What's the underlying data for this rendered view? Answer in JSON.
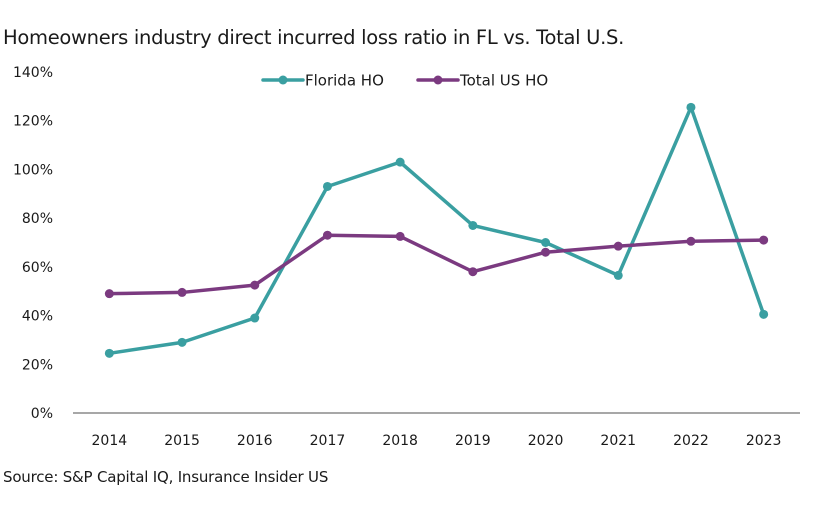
{
  "chart_data": {
    "type": "line",
    "title": "Homeowners industry direct incurred loss ratio in FL vs. Total U.S.",
    "xlabel": "",
    "ylabel": "",
    "categories": [
      "2014",
      "2015",
      "2016",
      "2017",
      "2018",
      "2019",
      "2020",
      "2021",
      "2022",
      "2023"
    ],
    "ylim": [
      0,
      140
    ],
    "yticks": [
      0,
      20,
      40,
      60,
      80,
      100,
      120,
      140
    ],
    "ytick_labels": [
      "0%",
      "20%",
      "40%",
      "60%",
      "80%",
      "100%",
      "120%",
      "140%"
    ],
    "grid": false,
    "legend_position": "top-center",
    "series": [
      {
        "name": "Florida HO",
        "color": "#3a9fa1",
        "values": [
          24.5,
          29,
          39,
          93,
          103,
          77,
          70,
          56.5,
          125.5,
          40.5
        ]
      },
      {
        "name": "Total US HO",
        "color": "#7b3a80",
        "values": [
          49,
          49.5,
          52.5,
          73,
          72.5,
          58,
          66,
          68.5,
          70.5,
          71
        ]
      }
    ],
    "source": "Source: S&P Capital IQ, Insurance Insider US"
  }
}
